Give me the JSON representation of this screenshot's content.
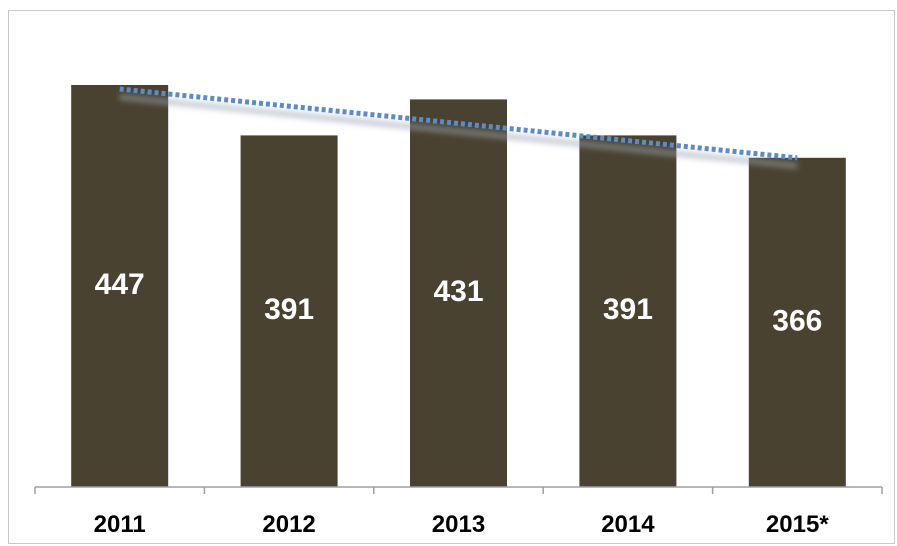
{
  "chart_data": {
    "type": "bar",
    "title": "",
    "xlabel": "",
    "ylabel": "",
    "categories": [
      "2011",
      "2012",
      "2013",
      "2014",
      "2015*"
    ],
    "series": [
      {
        "values": [
          447,
          391,
          431,
          391,
          366
        ]
      }
    ],
    "value_labels": [
      "447",
      "391",
      "431",
      "391",
      "366"
    ],
    "ylim": [
      0,
      500
    ],
    "trendline": {
      "style": "dotted",
      "type": "linear",
      "start": 447,
      "end": 366
    },
    "grid": false,
    "legend": "none",
    "colors": {
      "bar": "#4a4230",
      "trendline": "#5b8bc8",
      "value_label": "#ffffff",
      "axis": "#a0a0a0",
      "tick_label": "#000000"
    }
  }
}
